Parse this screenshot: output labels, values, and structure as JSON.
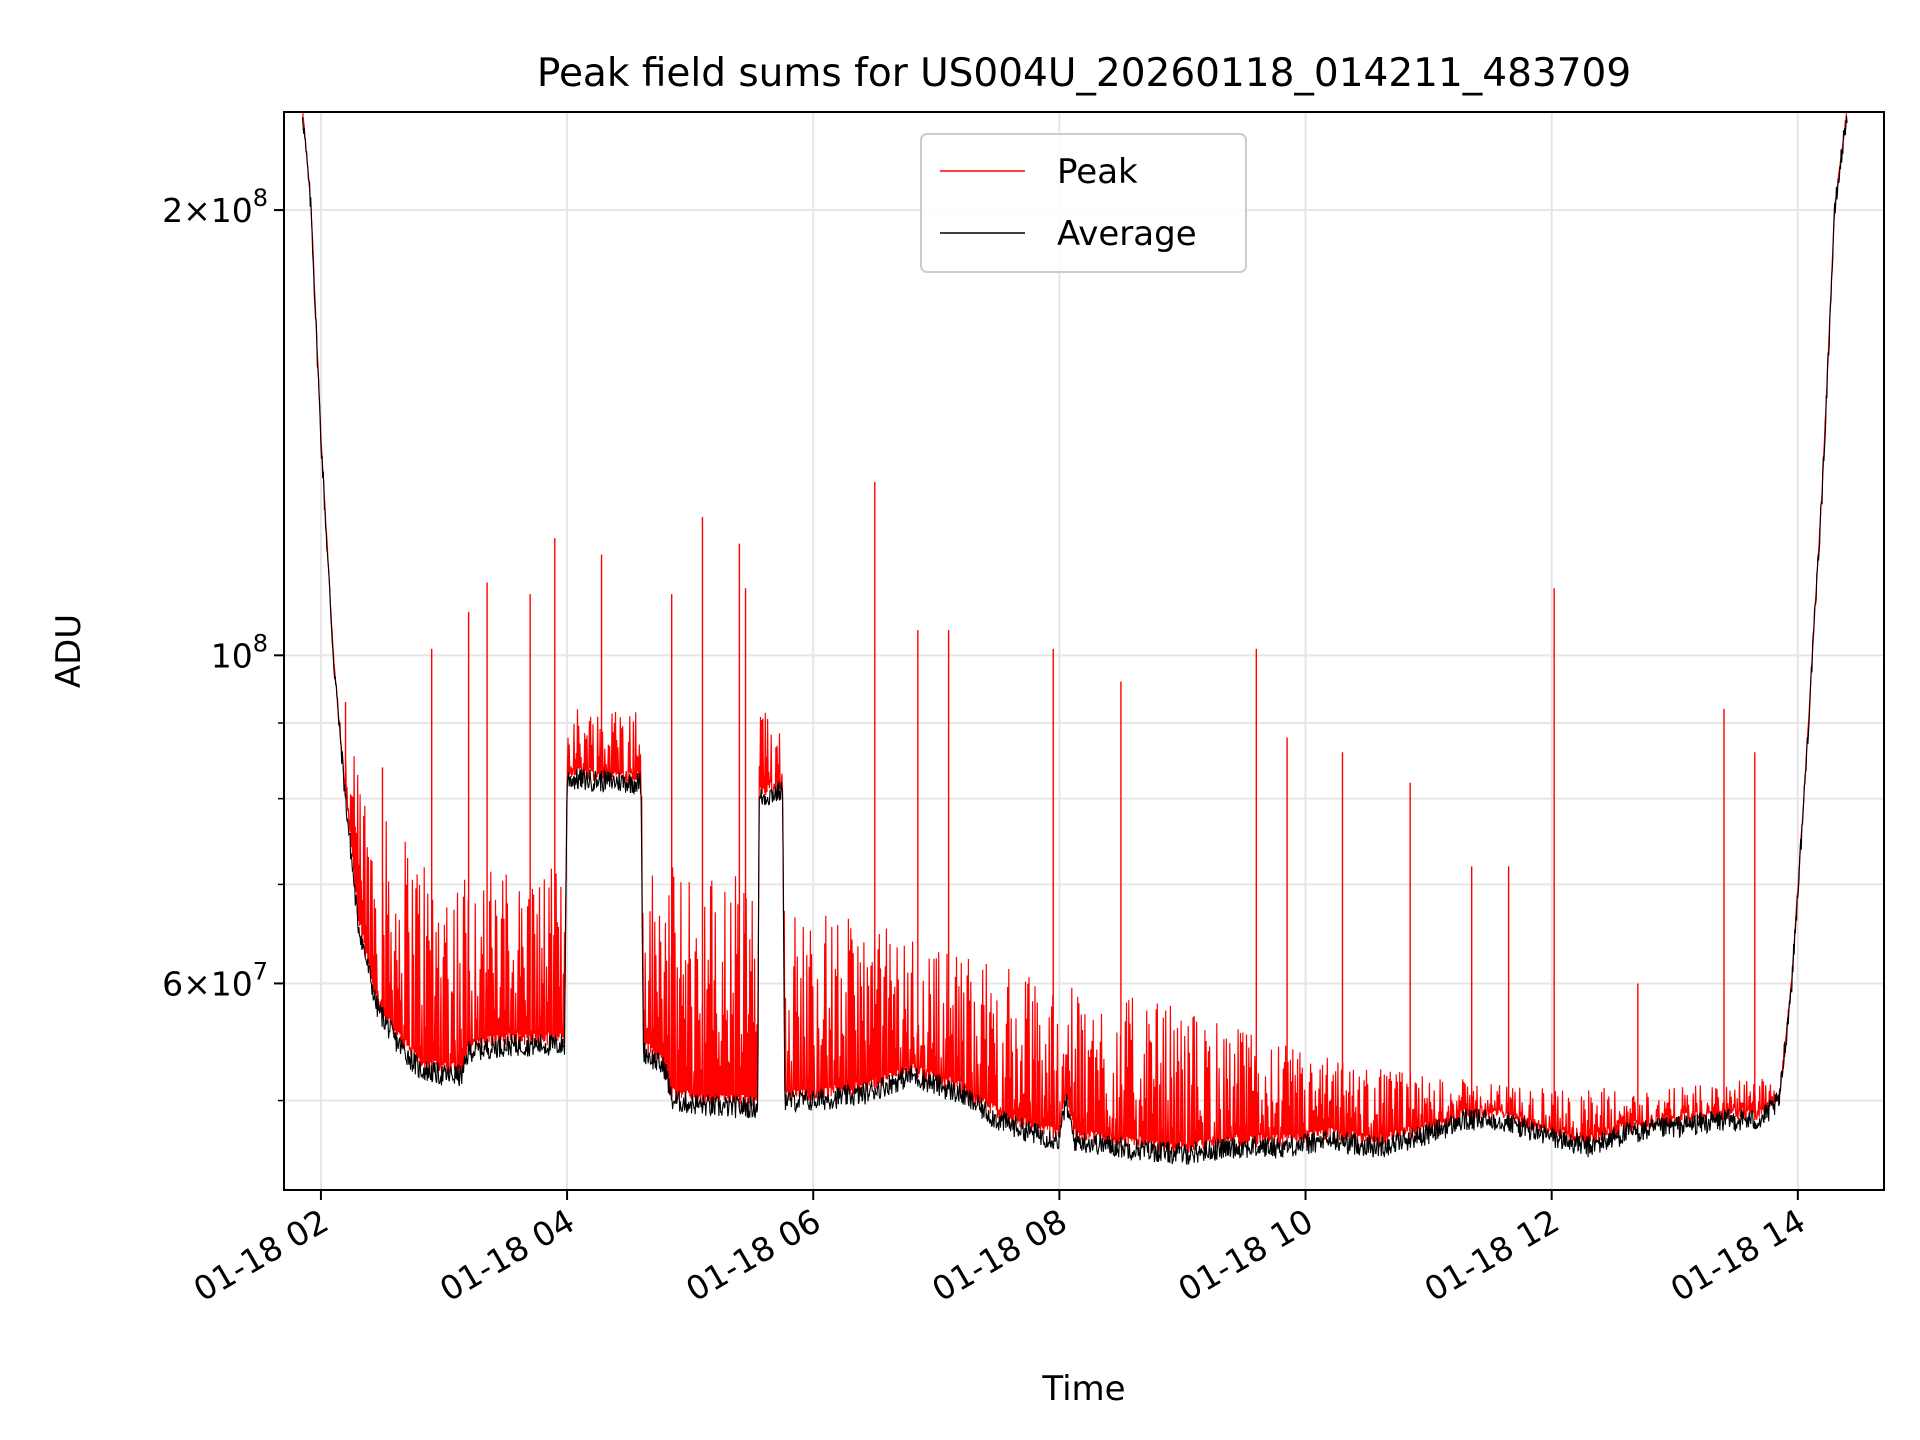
{
  "chart_data": {
    "type": "line",
    "title": "Peak field sums for US004U_20260118_014211_483709",
    "xlabel": "Time",
    "ylabel": "ADU",
    "yscale": "log",
    "ylim": [
      43500000,
      233000000
    ],
    "xlim_hours": [
      1.7,
      14.7
    ],
    "grid": true,
    "legend": {
      "position": "top-center",
      "entries": [
        {
          "name": "Peak",
          "color": "#ff0000"
        },
        {
          "name": "Average",
          "color": "#000000"
        }
      ]
    },
    "x_ticks": [
      {
        "hour": 2,
        "label": "01-18 02"
      },
      {
        "hour": 4,
        "label": "01-18 04"
      },
      {
        "hour": 6,
        "label": "01-18 06"
      },
      {
        "hour": 8,
        "label": "01-18 08"
      },
      {
        "hour": 10,
        "label": "01-18 10"
      },
      {
        "hour": 12,
        "label": "01-18 12"
      },
      {
        "hour": 14,
        "label": "01-18 14"
      }
    ],
    "y_major_ticks": [
      {
        "value": 200000000,
        "mant": "2",
        "exp": "8"
      },
      {
        "value": 100000000,
        "mant": "",
        "exp": "8"
      },
      {
        "value": 60000000,
        "mant": "6",
        "exp": "7"
      }
    ],
    "y_minor_ticks": [
      50000000,
      70000000,
      80000000,
      90000000
    ],
    "series": [
      {
        "name": "Average",
        "color": "#000000",
        "points": [
          [
            1.85,
            233000000
          ],
          [
            1.92,
            200000000
          ],
          [
            2.0,
            140000000
          ],
          [
            2.1,
            100000000
          ],
          [
            2.2,
            80000000
          ],
          [
            2.3,
            66000000
          ],
          [
            2.45,
            58000000
          ],
          [
            2.6,
            55000000
          ],
          [
            2.8,
            52500000
          ],
          [
            3.0,
            52000000
          ],
          [
            3.15,
            52000000
          ],
          [
            3.2,
            54000000
          ],
          [
            3.5,
            54500000
          ],
          [
            3.9,
            54500000
          ],
          [
            3.98,
            54500000
          ],
          [
            4.0,
            82500000
          ],
          [
            4.6,
            82000000
          ],
          [
            4.62,
            54000000
          ],
          [
            4.8,
            52500000
          ],
          [
            4.85,
            50000000
          ],
          [
            5.2,
            49500000
          ],
          [
            5.5,
            49500000
          ],
          [
            5.55,
            49500000
          ],
          [
            5.56,
            80000000
          ],
          [
            5.75,
            81000000
          ],
          [
            5.77,
            50000000
          ],
          [
            6.0,
            50000000
          ],
          [
            6.4,
            50500000
          ],
          [
            6.8,
            52000000
          ],
          [
            7.2,
            50500000
          ],
          [
            7.5,
            48500000
          ],
          [
            7.8,
            47500000
          ],
          [
            8.0,
            47000000
          ],
          [
            8.05,
            50000000
          ],
          [
            8.12,
            47000000
          ],
          [
            8.5,
            46500000
          ],
          [
            9.0,
            46000000
          ],
          [
            9.4,
            46500000
          ],
          [
            9.8,
            46500000
          ],
          [
            10.2,
            47000000
          ],
          [
            10.6,
            46500000
          ],
          [
            11.0,
            47500000
          ],
          [
            11.3,
            48500000
          ],
          [
            11.6,
            48500000
          ],
          [
            11.9,
            47500000
          ],
          [
            12.1,
            47000000
          ],
          [
            12.3,
            46500000
          ],
          [
            12.6,
            47500000
          ],
          [
            13.0,
            48000000
          ],
          [
            13.4,
            48500000
          ],
          [
            13.7,
            48500000
          ],
          [
            13.85,
            50000000
          ],
          [
            13.95,
            60000000
          ],
          [
            14.05,
            80000000
          ],
          [
            14.2,
            130000000
          ],
          [
            14.3,
            200000000
          ],
          [
            14.4,
            233000000
          ]
        ]
      },
      {
        "name": "Peak",
        "color": "#ff0000",
        "peak_band": [
          [
            2.2,
            88000000
          ],
          [
            2.5,
            78000000
          ],
          [
            3.0,
            73000000
          ],
          [
            3.5,
            72000000
          ],
          [
            3.98,
            72000000
          ],
          [
            4.0,
            93000000
          ],
          [
            4.6,
            93000000
          ],
          [
            4.62,
            72000000
          ],
          [
            5.55,
            72000000
          ],
          [
            5.56,
            92000000
          ],
          [
            5.75,
            92000000
          ],
          [
            5.77,
            68000000
          ],
          [
            6.5,
            66000000
          ],
          [
            7.0,
            64000000
          ],
          [
            8.0,
            60000000
          ],
          [
            9.0,
            58000000
          ],
          [
            10.0,
            54000000
          ],
          [
            11.0,
            52000000
          ],
          [
            12.0,
            51000000
          ],
          [
            13.0,
            51000000
          ],
          [
            13.9,
            52000000
          ]
        ],
        "spikes": [
          [
            2.2,
            93000000
          ],
          [
            2.5,
            84000000
          ],
          [
            2.9,
            101000000
          ],
          [
            3.2,
            107000000
          ],
          [
            3.35,
            112000000
          ],
          [
            3.7,
            110000000
          ],
          [
            3.9,
            120000000
          ],
          [
            4.28,
            117000000
          ],
          [
            4.85,
            110000000
          ],
          [
            5.1,
            124000000
          ],
          [
            5.4,
            119000000
          ],
          [
            5.45,
            111000000
          ],
          [
            6.5,
            131000000
          ],
          [
            6.85,
            104000000
          ],
          [
            7.1,
            104000000
          ],
          [
            7.95,
            101000000
          ],
          [
            8.5,
            96000000
          ],
          [
            9.6,
            101000000
          ],
          [
            9.85,
            88000000
          ],
          [
            10.3,
            86000000
          ],
          [
            10.85,
            82000000
          ],
          [
            11.35,
            72000000
          ],
          [
            11.65,
            72000000
          ],
          [
            12.02,
            111000000
          ],
          [
            12.7,
            60000000
          ],
          [
            13.4,
            92000000
          ],
          [
            13.65,
            86000000
          ]
        ]
      }
    ]
  }
}
